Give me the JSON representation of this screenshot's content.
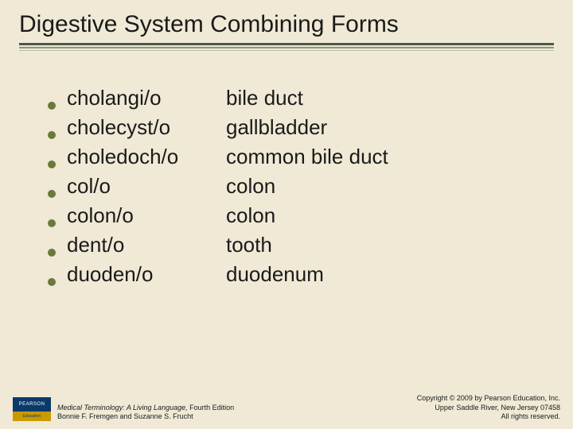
{
  "title": "Digestive System Combining Forms",
  "rows": [
    {
      "term": "cholangi/o",
      "def": "bile duct"
    },
    {
      "term": "cholecyst/o",
      "def": "gallbladder"
    },
    {
      "term": "choledoch/o",
      "def": "common bile duct"
    },
    {
      "term": "col/o",
      "def": "colon"
    },
    {
      "term": "colon/o",
      "def": "colon"
    },
    {
      "term": "dent/o",
      "def": "tooth"
    },
    {
      "term": "duoden/o",
      "def": "duodenum"
    }
  ],
  "footer": {
    "logo_top": "PEARSON",
    "logo_bottom": "Education",
    "book_title": "Medical Terminology: A Living Language,",
    "edition": " Fourth Edition",
    "authors": "Bonnie F. Fremgen and Suzanne S. Frucht",
    "copyright_line1": "Copyright © 2009 by Pearson Education, Inc.",
    "copyright_line2": "Upper Saddle River, New Jersey 07458",
    "copyright_line3": "All rights reserved."
  },
  "colors": {
    "background": "#efe9d6",
    "bullet": "#6b7a3a",
    "text": "#1a1a1a"
  }
}
